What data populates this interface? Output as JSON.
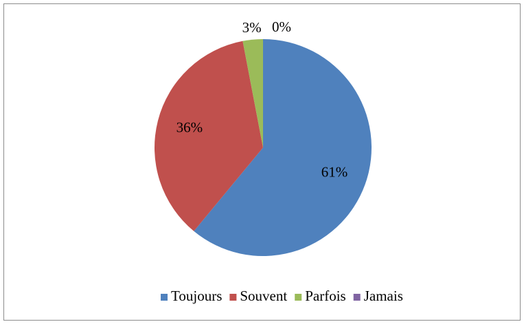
{
  "chart_data": {
    "type": "pie",
    "categories": [
      "Toujours",
      "Souvent",
      "Parfois",
      "Jamais"
    ],
    "values": [
      61,
      36,
      3,
      0
    ],
    "value_labels": [
      "61%",
      "36%",
      "3%",
      "0%"
    ],
    "colors": [
      "#4f81bd",
      "#c0504d",
      "#9bbb59",
      "#8064a2"
    ],
    "legend": "bottom"
  }
}
